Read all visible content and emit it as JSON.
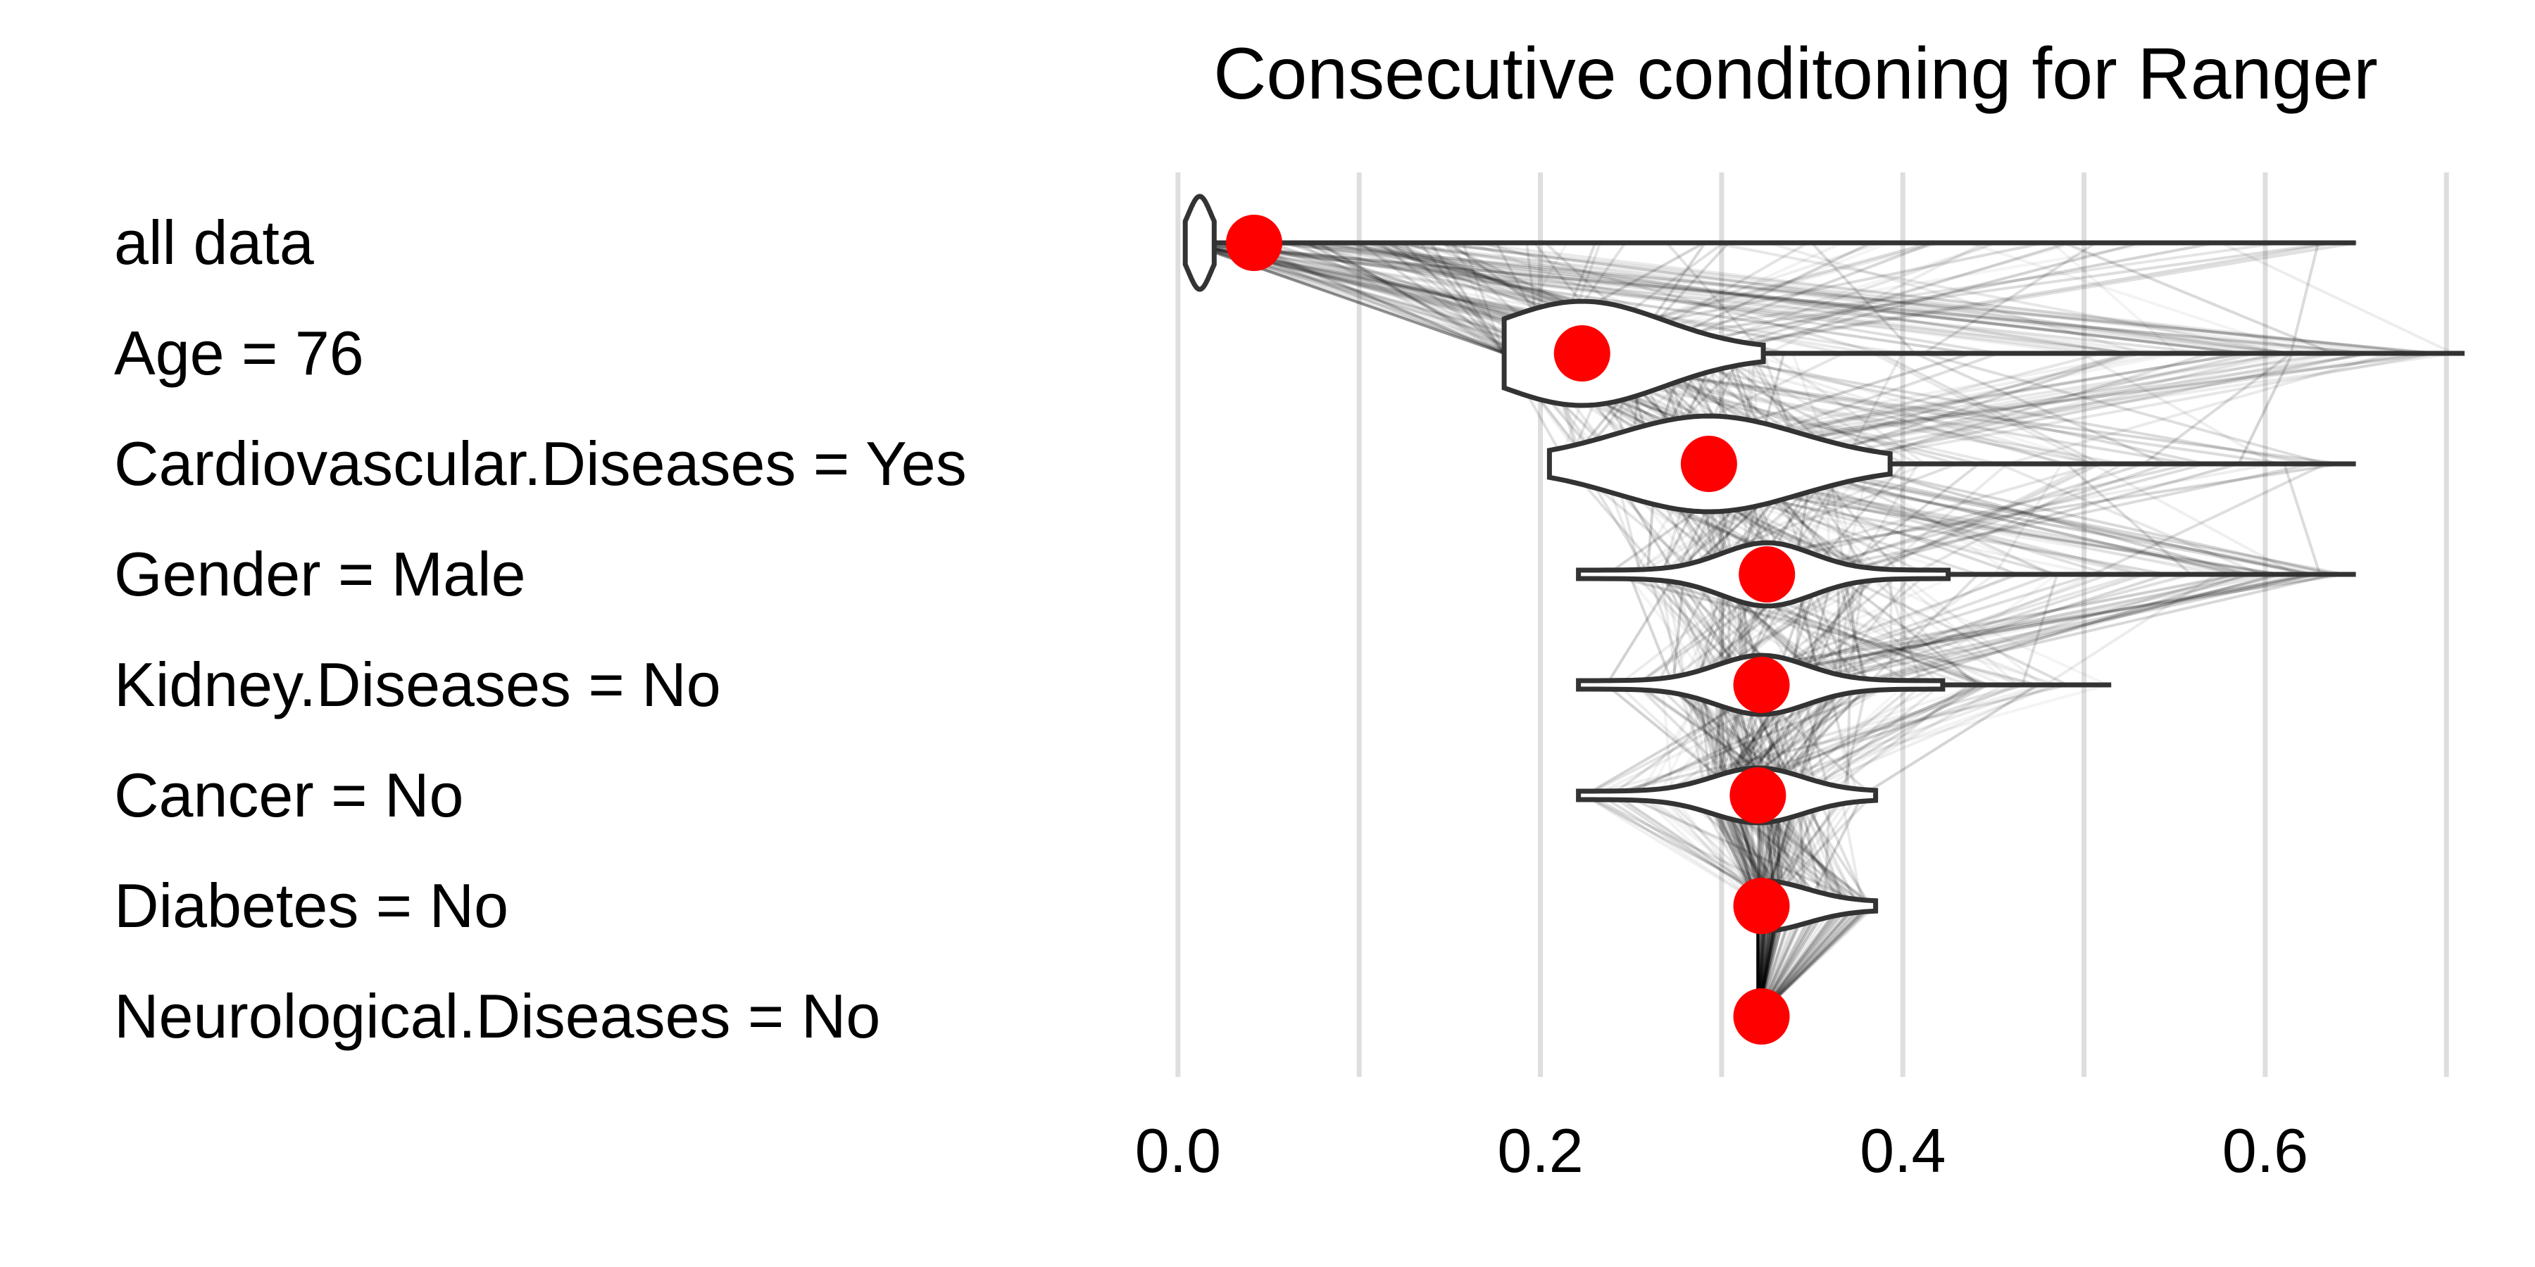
{
  "chart_data": {
    "type": "violin",
    "title": "Consecutive conditoning for Ranger",
    "xlabel": "",
    "ylabel": "",
    "xlim": [
      -0.005,
      0.71
    ],
    "x_ticks": [
      0.0,
      0.2,
      0.4,
      0.6
    ],
    "x_tick_labels": [
      "0.0",
      "0.2",
      "0.4",
      "0.6"
    ],
    "grid": true,
    "accent_color": "#ff0000",
    "steps": [
      {
        "label": "all data",
        "value": 0.042,
        "range": [
          0.005,
          0.65
        ]
      },
      {
        "label": "Age = 76",
        "value": 0.223,
        "range": [
          0.18,
          0.71
        ]
      },
      {
        "label": "Cardiovascular.Diseases = Yes",
        "value": 0.293,
        "range": [
          0.205,
          0.65
        ]
      },
      {
        "label": "Gender = Male",
        "value": 0.325,
        "range": [
          0.221,
          0.65
        ]
      },
      {
        "label": "Kidney.Diseases = No",
        "value": 0.322,
        "range": [
          0.221,
          0.515
        ]
      },
      {
        "label": "Cancer = No",
        "value": 0.32,
        "range": [
          0.221,
          0.385
        ]
      },
      {
        "label": "Diabetes = No",
        "value": 0.322,
        "range": [
          0.32,
          0.385
        ]
      },
      {
        "label": "Neurological.Diseases = No",
        "value": 0.322,
        "range": [
          0.32,
          0.32
        ]
      }
    ]
  }
}
